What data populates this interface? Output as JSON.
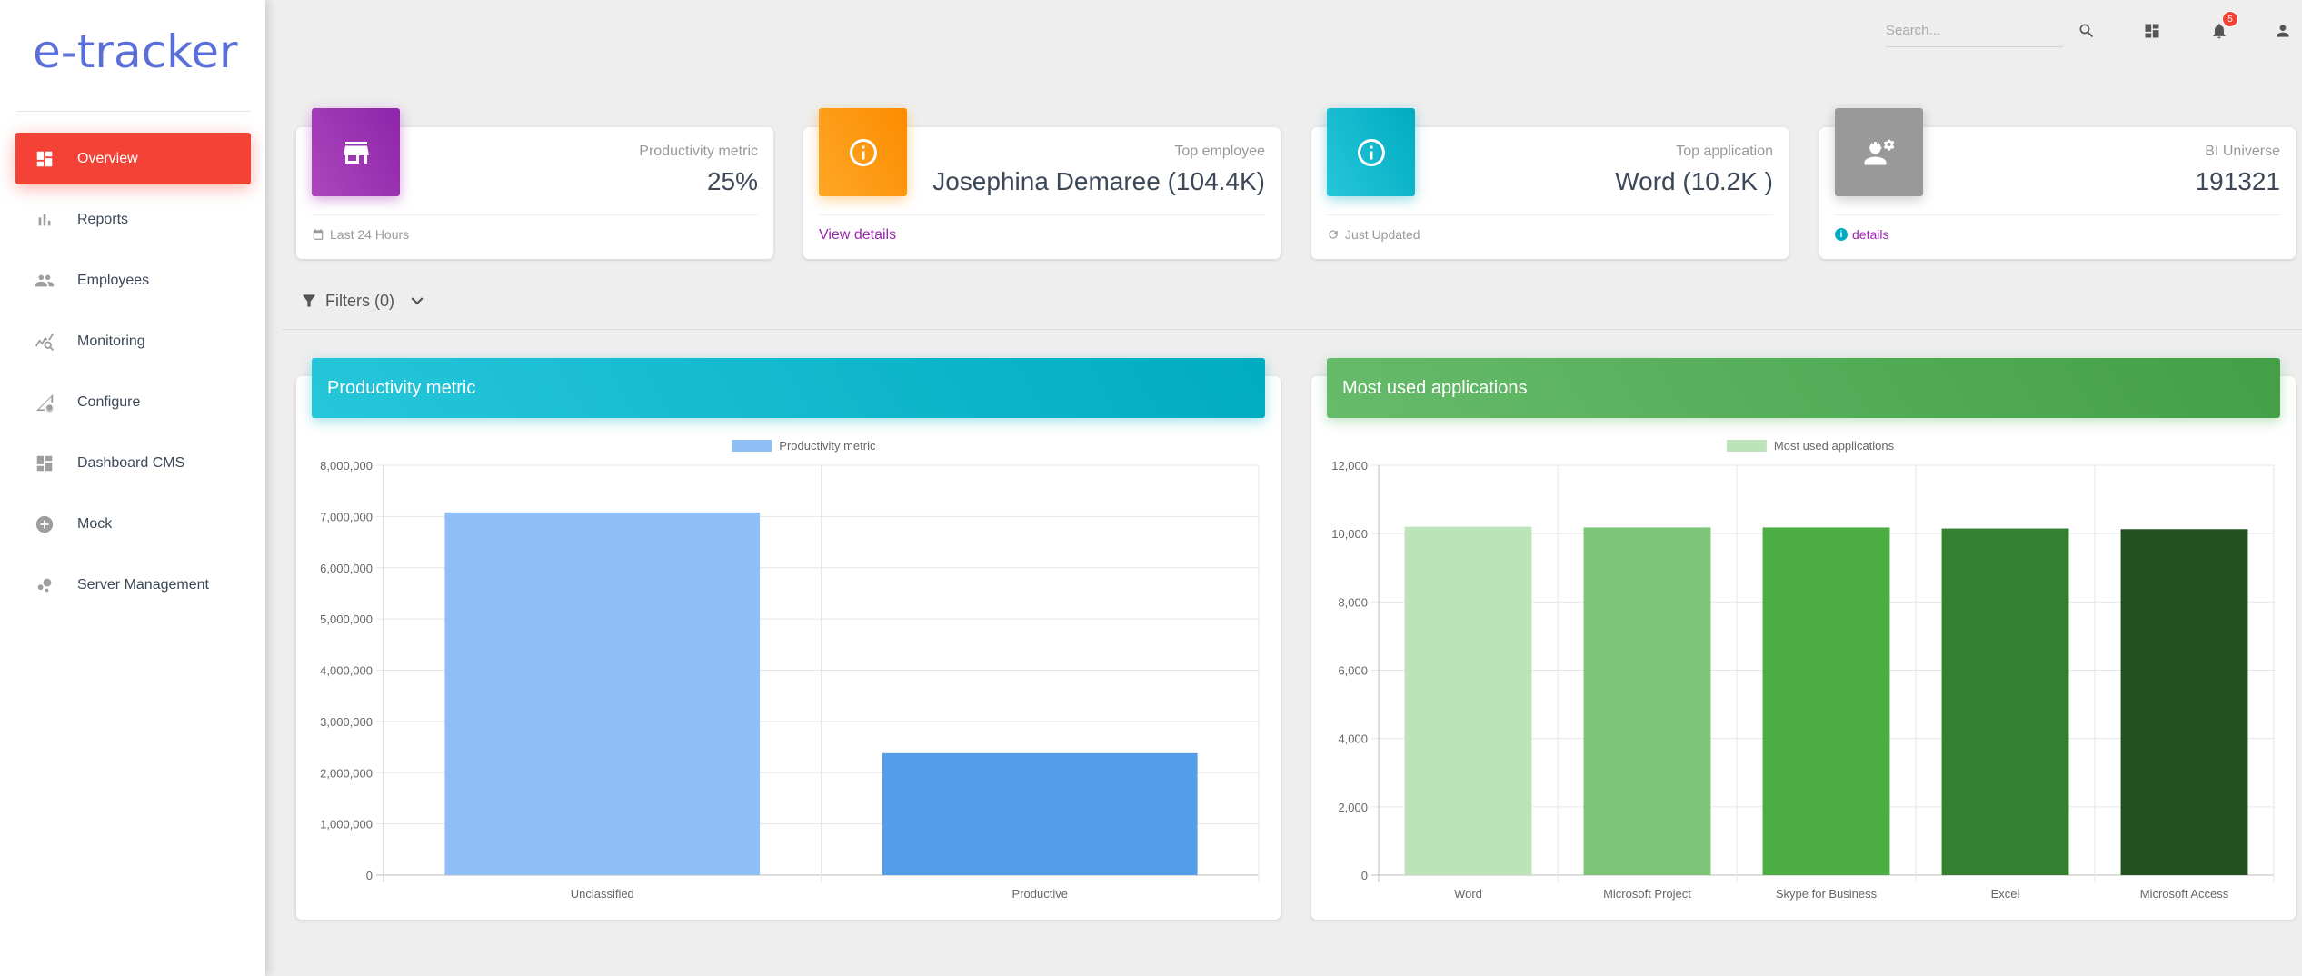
{
  "app": {
    "logo": "e-tracker"
  },
  "sidebar": {
    "items": [
      {
        "label": "Overview",
        "icon": "dashboard-icon",
        "active": true
      },
      {
        "label": "Reports",
        "icon": "bar-chart-icon",
        "active": false
      },
      {
        "label": "Employees",
        "icon": "people-icon",
        "active": false
      },
      {
        "label": "Monitoring",
        "icon": "monitoring-icon",
        "active": false
      },
      {
        "label": "Configure",
        "icon": "configure-icon",
        "active": false
      },
      {
        "label": "Dashboard CMS",
        "icon": "dashboard-cms-icon",
        "active": false
      },
      {
        "label": "Mock",
        "icon": "add-circle-icon",
        "active": false
      },
      {
        "label": "Server Management",
        "icon": "bubble-chart-icon",
        "active": false
      }
    ]
  },
  "topbar": {
    "search_placeholder": "Search...",
    "notification_count": "5"
  },
  "stats": [
    {
      "title": "Productivity metric",
      "value": "25%",
      "footer": "Last 24 Hours",
      "color": "#9c27b0"
    },
    {
      "title": "Top employee",
      "value": "Josephina Demaree (104.4K)",
      "footer": "View details",
      "color": "#ff9800"
    },
    {
      "title": "Top application",
      "value": "Word (10.2K )",
      "footer": "Just Updated",
      "color": "#00acc1"
    },
    {
      "title": "BI Universe",
      "value": "191321",
      "footer": "details",
      "color": "#999999"
    }
  ],
  "filters": {
    "label": "Filters (0)"
  },
  "chart_data": [
    {
      "type": "bar",
      "title": "Productivity metric",
      "legend": "Productivity metric",
      "categories": [
        "Unclassified",
        "Productive"
      ],
      "values": [
        7080000,
        2380000
      ],
      "ylim": [
        0,
        8000000
      ],
      "yticks": [
        0,
        1000000,
        2000000,
        3000000,
        4000000,
        5000000,
        6000000,
        7000000,
        8000000
      ],
      "ytick_labels": [
        "0",
        "1,000,000",
        "2,000,000",
        "3,000,000",
        "4,000,000",
        "5,000,000",
        "6,000,000",
        "7,000,000",
        "8,000,000"
      ],
      "colors": [
        "#90bff5",
        "#539ee8"
      ],
      "header_color": "#00acc1"
    },
    {
      "type": "bar",
      "title": "Most used applications",
      "legend": "Most used applications",
      "categories": [
        "Word",
        "Microsoft Project",
        "Skype for Business",
        "Excel",
        "Microsoft Access"
      ],
      "values": [
        10200,
        10180,
        10180,
        10150,
        10130
      ],
      "ylim": [
        0,
        12000
      ],
      "yticks": [
        0,
        2000,
        4000,
        6000,
        8000,
        10000,
        12000
      ],
      "ytick_labels": [
        "0",
        "2,000",
        "4,000",
        "6,000",
        "8,000",
        "10,000",
        "12,000"
      ],
      "colors": [
        "#bde3b9",
        "#7cc576",
        "#4bad43",
        "#348030",
        "#23501f"
      ],
      "header_color": "#4caf50"
    }
  ]
}
